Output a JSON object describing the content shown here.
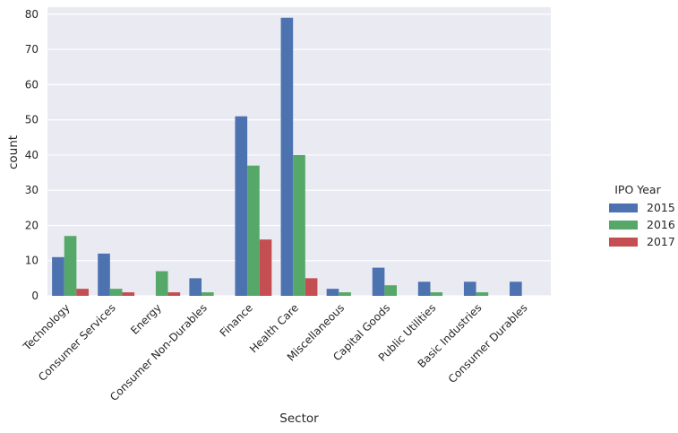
{
  "chart_data": {
    "type": "bar",
    "xlabel": "Sector",
    "ylabel": "count",
    "ylim": [
      0,
      82
    ],
    "yticks": [
      0,
      10,
      20,
      30,
      40,
      50,
      60,
      70,
      80
    ],
    "grid": true,
    "legend_placement": "right",
    "legend_title": "IPO Year",
    "plot_background": "#EAEAF2",
    "categories": [
      "Technology",
      "Consumer Services",
      "Energy",
      "Consumer Non-Durables",
      "Finance",
      "Health Care",
      "Miscellaneous",
      "Capital Goods",
      "Public Utilities",
      "Basic Industries",
      "Consumer Durables"
    ],
    "series": [
      {
        "name": "2015",
        "color": "#4C72B0",
        "values": [
          11,
          12,
          0,
          5,
          51,
          79,
          2,
          8,
          4,
          4,
          4
        ]
      },
      {
        "name": "2016",
        "color": "#55A868",
        "values": [
          17,
          2,
          7,
          1,
          37,
          40,
          1,
          3,
          1,
          1,
          0
        ]
      },
      {
        "name": "2017",
        "color": "#C44E52",
        "values": [
          2,
          1,
          1,
          0,
          16,
          5,
          0,
          0,
          0,
          0,
          0
        ]
      }
    ]
  }
}
